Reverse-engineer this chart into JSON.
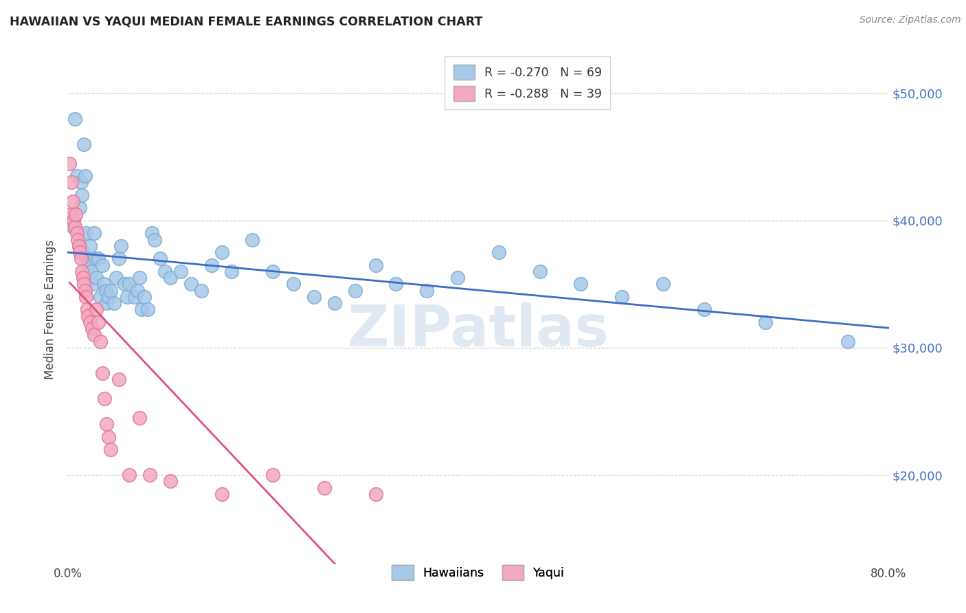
{
  "title": "HAWAIIAN VS YAQUI MEDIAN FEMALE EARNINGS CORRELATION CHART",
  "source": "Source: ZipAtlas.com",
  "ylabel": "Median Female Earnings",
  "xlim": [
    0.0,
    0.8
  ],
  "ylim": [
    13000,
    53000
  ],
  "blue_color": "#a8c8e8",
  "blue_edge_color": "#7aadd4",
  "pink_color": "#f4a8c0",
  "pink_edge_color": "#e07898",
  "blue_line_color": "#3a6cc8",
  "pink_line_color": "#e0507a",
  "dashed_ext_color": "#c8c8d0",
  "grid_color": "#c8c8cc",
  "title_color": "#222222",
  "right_tick_color": "#4472c4",
  "watermark_color": "#c8d8e8",
  "watermark": "ZIPatlas",
  "hawaiian_R": -0.27,
  "hawaiian_N": 69,
  "yaqui_R": -0.288,
  "yaqui_N": 39,
  "hawaiian_x": [
    0.005,
    0.007,
    0.009,
    0.011,
    0.012,
    0.013,
    0.014,
    0.015,
    0.016,
    0.017,
    0.018,
    0.019,
    0.02,
    0.022,
    0.023,
    0.025,
    0.026,
    0.027,
    0.028,
    0.03,
    0.032,
    0.034,
    0.035,
    0.037,
    0.038,
    0.04,
    0.042,
    0.045,
    0.047,
    0.05,
    0.052,
    0.055,
    0.058,
    0.06,
    0.065,
    0.068,
    0.07,
    0.072,
    0.075,
    0.078,
    0.082,
    0.085,
    0.09,
    0.095,
    0.1,
    0.11,
    0.12,
    0.13,
    0.14,
    0.15,
    0.16,
    0.18,
    0.2,
    0.22,
    0.24,
    0.26,
    0.28,
    0.3,
    0.32,
    0.35,
    0.38,
    0.42,
    0.46,
    0.5,
    0.54,
    0.58,
    0.62,
    0.68,
    0.76
  ],
  "hawaiian_y": [
    39500,
    48000,
    43500,
    38000,
    41000,
    43000,
    42000,
    37500,
    46000,
    43500,
    39000,
    37000,
    36500,
    38000,
    36000,
    35000,
    39000,
    37000,
    35500,
    37000,
    34000,
    36500,
    35000,
    34500,
    33500,
    34000,
    34500,
    33500,
    35500,
    37000,
    38000,
    35000,
    34000,
    35000,
    34000,
    34500,
    35500,
    33000,
    34000,
    33000,
    39000,
    38500,
    37000,
    36000,
    35500,
    36000,
    35000,
    34500,
    36500,
    37500,
    36000,
    38500,
    36000,
    35000,
    34000,
    33500,
    34500,
    36500,
    35000,
    34500,
    35500,
    37500,
    36000,
    35000,
    34000,
    35000,
    33000,
    32000,
    30500
  ],
  "yaqui_x": [
    0.002,
    0.003,
    0.004,
    0.005,
    0.006,
    0.007,
    0.008,
    0.009,
    0.01,
    0.011,
    0.012,
    0.013,
    0.014,
    0.015,
    0.016,
    0.017,
    0.018,
    0.019,
    0.02,
    0.022,
    0.024,
    0.026,
    0.028,
    0.03,
    0.032,
    0.034,
    0.036,
    0.038,
    0.04,
    0.042,
    0.05,
    0.06,
    0.07,
    0.08,
    0.1,
    0.15,
    0.2,
    0.25,
    0.3
  ],
  "yaqui_y": [
    44500,
    40500,
    43000,
    41500,
    40000,
    39500,
    40500,
    39000,
    38500,
    38000,
    37500,
    37000,
    36000,
    35500,
    35000,
    34500,
    34000,
    33000,
    32500,
    32000,
    31500,
    31000,
    33000,
    32000,
    30500,
    28000,
    26000,
    24000,
    23000,
    22000,
    27500,
    20000,
    24500,
    20000,
    19500,
    18500,
    20000,
    19000,
    18500
  ],
  "ytick_positions": [
    20000,
    30000,
    40000,
    50000
  ],
  "ytick_labels": [
    "$20,000",
    "$30,000",
    "$40,000",
    "$50,000"
  ],
  "xtick_positions": [
    0.0,
    0.1,
    0.2,
    0.3,
    0.4,
    0.5,
    0.6,
    0.7,
    0.8
  ],
  "xtick_labels_show": {
    "0.0": "0.0%",
    "0.8": "80.0%"
  }
}
